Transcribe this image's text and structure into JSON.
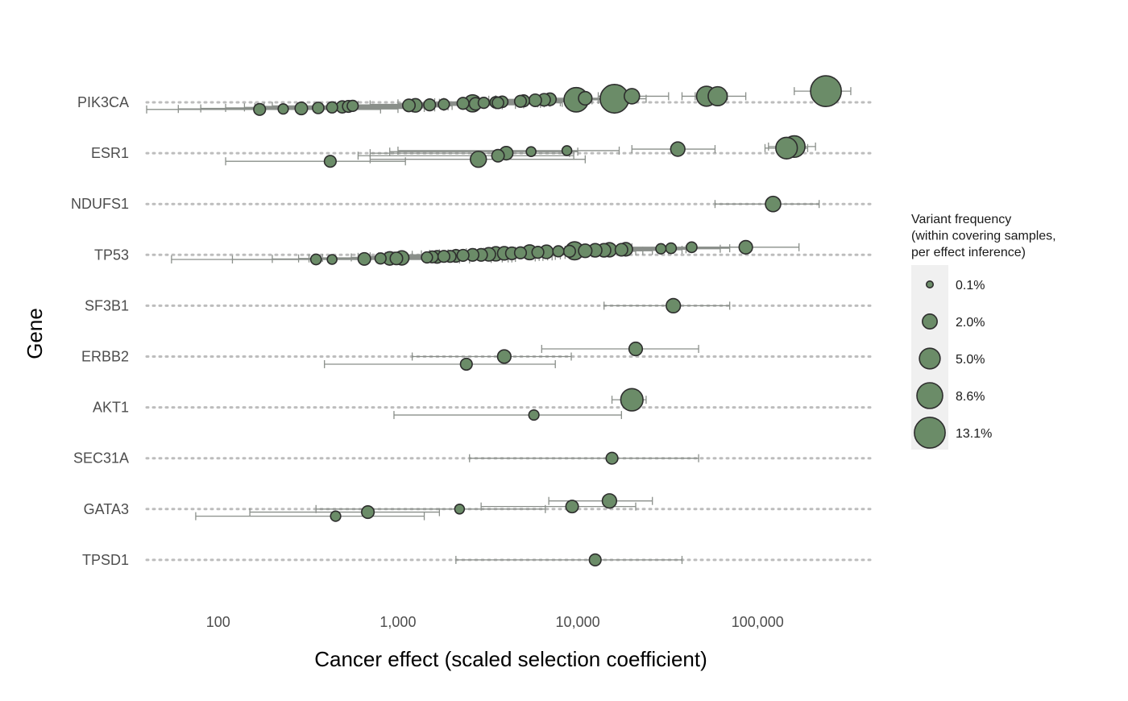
{
  "chart_data": {
    "type": "scatter",
    "subtype": "dot-and-interval by gene",
    "x_scale": "log10",
    "xlim": [
      40,
      450000
    ],
    "x_ticks": [
      100,
      1000,
      10000,
      100000
    ],
    "x_tick_labels": [
      "100",
      "1,000",
      "10,000",
      "100,000"
    ],
    "xlabel": "Cancer effect (scaled selection coefficient)",
    "ylabel": "Gene",
    "grid": "dotted horizontal per gene",
    "genes": [
      "PIK3CA",
      "ESR1",
      "NDUFS1",
      "TP53",
      "SF3B1",
      "ERBB2",
      "AKT1",
      "SEC31A",
      "GATA3",
      "TPSD1"
    ],
    "colors": {
      "point_fill": "#6b8c68",
      "point_stroke": "#2e2e2e",
      "interval": "#8a8f8a",
      "grid": "#bdbdbd",
      "legend_bg": "#f0f0f0"
    },
    "legend": {
      "placement": "right",
      "title": "Variant frequency\n(within covering samples,\nper effect inference)",
      "entries": [
        {
          "label": "0.1%",
          "freq": 0.1
        },
        {
          "label": "2.0%",
          "freq": 2.0
        },
        {
          "label": "5.0%",
          "freq": 5.0
        },
        {
          "label": "8.6%",
          "freq": 8.6
        },
        {
          "label": "13.1%",
          "freq": 13.1
        }
      ]
    },
    "points": [
      {
        "gene": "PIK3CA",
        "effect": 240000,
        "low": 160000,
        "high": 330000,
        "freq": 13.1,
        "offset": 0.22
      },
      {
        "gene": "PIK3CA",
        "effect": 52000,
        "low": 38000,
        "high": 68000,
        "freq": 4.5,
        "offset": 0.12
      },
      {
        "gene": "PIK3CA",
        "effect": 60000,
        "low": 45000,
        "high": 86000,
        "freq": 4.0,
        "offset": 0.12
      },
      {
        "gene": "PIK3CA",
        "effect": 16000,
        "low": 10000,
        "high": 24000,
        "freq": 11.0,
        "offset": 0.07
      },
      {
        "gene": "PIK3CA",
        "effect": 9800,
        "low": 6000,
        "high": 15000,
        "freq": 7.5,
        "offset": 0.05
      },
      {
        "gene": "PIK3CA",
        "effect": 20000,
        "low": 13000,
        "high": 32000,
        "freq": 2.2,
        "offset": 0.12
      },
      {
        "gene": "PIK3CA",
        "effect": 11000,
        "low": 7000,
        "high": 17000,
        "freq": 1.5,
        "offset": 0.08
      },
      {
        "gene": "PIK3CA",
        "effect": 7000,
        "low": 3500,
        "high": 14000,
        "freq": 1.2,
        "offset": 0.06
      },
      {
        "gene": "PIK3CA",
        "effect": 6500,
        "low": 3200,
        "high": 13000,
        "freq": 1.2,
        "offset": 0.05
      },
      {
        "gene": "PIK3CA",
        "effect": 5800,
        "low": 2800,
        "high": 12000,
        "freq": 1.2,
        "offset": 0.04
      },
      {
        "gene": "PIK3CA",
        "effect": 5000,
        "low": 2500,
        "high": 11000,
        "freq": 1.0,
        "offset": 0.03
      },
      {
        "gene": "PIK3CA",
        "effect": 4800,
        "low": 2300,
        "high": 10000,
        "freq": 1.0,
        "offset": 0.02
      },
      {
        "gene": "PIK3CA",
        "effect": 3800,
        "low": 1800,
        "high": 8500,
        "freq": 0.9,
        "offset": 0.01
      },
      {
        "gene": "PIK3CA",
        "effect": 3500,
        "low": 1600,
        "high": 8000,
        "freq": 0.9,
        "offset": 0.0
      },
      {
        "gene": "PIK3CA",
        "effect": 3600,
        "low": 1700,
        "high": 8200,
        "freq": 0.9,
        "offset": -0.01
      },
      {
        "gene": "PIK3CA",
        "effect": 2600,
        "low": 1200,
        "high": 6500,
        "freq": 3.0,
        "offset": -0.02
      },
      {
        "gene": "PIK3CA",
        "effect": 3000,
        "low": 1300,
        "high": 7000,
        "freq": 0.8,
        "offset": -0.01
      },
      {
        "gene": "PIK3CA",
        "effect": 2300,
        "low": 1000,
        "high": 6000,
        "freq": 1.0,
        "offset": -0.02
      },
      {
        "gene": "PIK3CA",
        "effect": 2700,
        "low": 1100,
        "high": 6200,
        "freq": 1.2,
        "offset": -0.03
      },
      {
        "gene": "PIK3CA",
        "effect": 1800,
        "low": 700,
        "high": 5000,
        "freq": 0.8,
        "offset": -0.04
      },
      {
        "gene": "PIK3CA",
        "effect": 1500,
        "low": 600,
        "high": 4500,
        "freq": 1.0,
        "offset": -0.05
      },
      {
        "gene": "PIK3CA",
        "effect": 1250,
        "low": 500,
        "high": 3800,
        "freq": 1.5,
        "offset": -0.06
      },
      {
        "gene": "PIK3CA",
        "effect": 1150,
        "low": 450,
        "high": 3500,
        "freq": 1.2,
        "offset": -0.06
      },
      {
        "gene": "PIK3CA",
        "effect": 560,
        "low": 200,
        "high": 2000,
        "freq": 0.8,
        "offset": -0.07
      },
      {
        "gene": "PIK3CA",
        "effect": 530,
        "low": 180,
        "high": 1900,
        "freq": 1.0,
        "offset": -0.08
      },
      {
        "gene": "PIK3CA",
        "effect": 490,
        "low": 160,
        "high": 1800,
        "freq": 1.1,
        "offset": -0.09
      },
      {
        "gene": "PIK3CA",
        "effect": 430,
        "low": 140,
        "high": 1600,
        "freq": 0.8,
        "offset": -0.1
      },
      {
        "gene": "PIK3CA",
        "effect": 360,
        "low": 110,
        "high": 1400,
        "freq": 0.9,
        "offset": -0.11
      },
      {
        "gene": "PIK3CA",
        "effect": 290,
        "low": 80,
        "high": 1200,
        "freq": 1.2,
        "offset": -0.12
      },
      {
        "gene": "PIK3CA",
        "effect": 230,
        "low": 60,
        "high": 1000,
        "freq": 0.6,
        "offset": -0.13
      },
      {
        "gene": "PIK3CA",
        "effect": 170,
        "low": 40,
        "high": 800,
        "freq": 1.0,
        "offset": -0.14
      },
      {
        "gene": "ESR1",
        "effect": 160000,
        "low": 115000,
        "high": 210000,
        "freq": 5.5,
        "offset": 0.13
      },
      {
        "gene": "ESR1",
        "effect": 145000,
        "low": 110000,
        "high": 190000,
        "freq": 5.5,
        "offset": 0.1
      },
      {
        "gene": "ESR1",
        "effect": 36000,
        "low": 20000,
        "high": 58000,
        "freq": 1.8,
        "offset": 0.08
      },
      {
        "gene": "ESR1",
        "effect": 8700,
        "low": 1000,
        "high": 17000,
        "freq": 0.5,
        "offset": 0.05
      },
      {
        "gene": "ESR1",
        "effect": 5500,
        "low": 900,
        "high": 10000,
        "freq": 0.5,
        "offset": 0.03
      },
      {
        "gene": "ESR1",
        "effect": 4000,
        "low": 700,
        "high": 9000,
        "freq": 1.5,
        "offset": 0.0
      },
      {
        "gene": "ESR1",
        "effect": 3600,
        "low": 600,
        "high": 9500,
        "freq": 1.2,
        "offset": -0.05
      },
      {
        "gene": "ESR1",
        "effect": 2800,
        "low": 700,
        "high": 11000,
        "freq": 2.5,
        "offset": -0.12
      },
      {
        "gene": "ESR1",
        "effect": 420,
        "low": 110,
        "high": 1100,
        "freq": 1.0,
        "offset": -0.16
      },
      {
        "gene": "NDUFS1",
        "effect": 122000,
        "low": 58000,
        "high": 220000,
        "freq": 2.2,
        "offset": 0.0
      },
      {
        "gene": "TP53",
        "effect": 86000,
        "low": 45000,
        "high": 170000,
        "freq": 1.5,
        "offset": 0.15
      },
      {
        "gene": "TP53",
        "effect": 43000,
        "low": 20000,
        "high": 90000,
        "freq": 0.7,
        "offset": 0.15
      },
      {
        "gene": "TP53",
        "effect": 33000,
        "low": 15000,
        "high": 70000,
        "freq": 0.7,
        "offset": 0.13
      },
      {
        "gene": "TP53",
        "effect": 29000,
        "low": 13000,
        "high": 62000,
        "freq": 0.6,
        "offset": 0.12
      },
      {
        "gene": "TP53",
        "effect": 18500,
        "low": 9000,
        "high": 40000,
        "freq": 1.5,
        "offset": 0.11
      },
      {
        "gene": "TP53",
        "effect": 17500,
        "low": 8500,
        "high": 38000,
        "freq": 1.2,
        "offset": 0.1
      },
      {
        "gene": "TP53",
        "effect": 15000,
        "low": 7000,
        "high": 34000,
        "freq": 1.8,
        "offset": 0.1
      },
      {
        "gene": "TP53",
        "effect": 14000,
        "low": 6500,
        "high": 32000,
        "freq": 1.5,
        "offset": 0.09
      },
      {
        "gene": "TP53",
        "effect": 12500,
        "low": 6000,
        "high": 29000,
        "freq": 1.5,
        "offset": 0.09
      },
      {
        "gene": "TP53",
        "effect": 11000,
        "low": 5000,
        "high": 26000,
        "freq": 1.5,
        "offset": 0.08
      },
      {
        "gene": "TP53",
        "effect": 9600,
        "low": 4500,
        "high": 23000,
        "freq": 3.5,
        "offset": 0.08
      },
      {
        "gene": "TP53",
        "effect": 9000,
        "low": 4000,
        "high": 21000,
        "freq": 1.0,
        "offset": 0.07
      },
      {
        "gene": "TP53",
        "effect": 7800,
        "low": 3500,
        "high": 19000,
        "freq": 0.8,
        "offset": 0.07
      },
      {
        "gene": "TP53",
        "effect": 6700,
        "low": 3000,
        "high": 17000,
        "freq": 1.5,
        "offset": 0.06
      },
      {
        "gene": "TP53",
        "effect": 6000,
        "low": 2700,
        "high": 15000,
        "freq": 1.0,
        "offset": 0.05
      },
      {
        "gene": "TP53",
        "effect": 5400,
        "low": 2400,
        "high": 14000,
        "freq": 2.0,
        "offset": 0.05
      },
      {
        "gene": "TP53",
        "effect": 4800,
        "low": 2100,
        "high": 13000,
        "freq": 1.0,
        "offset": 0.04
      },
      {
        "gene": "TP53",
        "effect": 4300,
        "low": 1900,
        "high": 12000,
        "freq": 1.2,
        "offset": 0.03
      },
      {
        "gene": "TP53",
        "effect": 3900,
        "low": 1700,
        "high": 11000,
        "freq": 1.5,
        "offset": 0.03
      },
      {
        "gene": "TP53",
        "effect": 3500,
        "low": 1500,
        "high": 10000,
        "freq": 1.8,
        "offset": 0.02
      },
      {
        "gene": "TP53",
        "effect": 3200,
        "low": 1350,
        "high": 9500,
        "freq": 1.5,
        "offset": 0.01
      },
      {
        "gene": "TP53",
        "effect": 2900,
        "low": 1200,
        "high": 9000,
        "freq": 1.2,
        "offset": 0.0
      },
      {
        "gene": "TP53",
        "effect": 2600,
        "low": 1050,
        "high": 8500,
        "freq": 1.2,
        "offset": 0.0
      },
      {
        "gene": "TP53",
        "effect": 2300,
        "low": 950,
        "high": 8000,
        "freq": 1.0,
        "offset": -0.01
      },
      {
        "gene": "TP53",
        "effect": 2100,
        "low": 850,
        "high": 7500,
        "freq": 1.2,
        "offset": -0.02
      },
      {
        "gene": "TP53",
        "effect": 1950,
        "low": 780,
        "high": 7200,
        "freq": 1.0,
        "offset": -0.03
      },
      {
        "gene": "TP53",
        "effect": 1800,
        "low": 700,
        "high": 6800,
        "freq": 1.0,
        "offset": -0.03
      },
      {
        "gene": "TP53",
        "effect": 1650,
        "low": 640,
        "high": 6400,
        "freq": 1.2,
        "offset": -0.04
      },
      {
        "gene": "TP53",
        "effect": 1550,
        "low": 600,
        "high": 6100,
        "freq": 1.0,
        "offset": -0.04
      },
      {
        "gene": "TP53",
        "effect": 1450,
        "low": 550,
        "high": 5800,
        "freq": 0.8,
        "offset": -0.05
      },
      {
        "gene": "TP53",
        "effect": 1050,
        "low": 380,
        "high": 4500,
        "freq": 1.8,
        "offset": -0.06
      },
      {
        "gene": "TP53",
        "effect": 980,
        "low": 350,
        "high": 4300,
        "freq": 1.2,
        "offset": -0.07
      },
      {
        "gene": "TP53",
        "effect": 900,
        "low": 320,
        "high": 4100,
        "freq": 1.5,
        "offset": -0.07
      },
      {
        "gene": "TP53",
        "effect": 800,
        "low": 280,
        "high": 3800,
        "freq": 0.8,
        "offset": -0.07
      },
      {
        "gene": "TP53",
        "effect": 650,
        "low": 200,
        "high": 3300,
        "freq": 1.2,
        "offset": -0.08
      },
      {
        "gene": "TP53",
        "effect": 430,
        "low": 120,
        "high": 2500,
        "freq": 0.5,
        "offset": -0.09
      },
      {
        "gene": "TP53",
        "effect": 350,
        "low": 55,
        "high": 2200,
        "freq": 0.7,
        "offset": -0.09
      },
      {
        "gene": "SF3B1",
        "effect": 34000,
        "low": 14000,
        "high": 70000,
        "freq": 1.8,
        "offset": 0.0
      },
      {
        "gene": "ERBB2",
        "effect": 21000,
        "low": 6300,
        "high": 47000,
        "freq": 1.5,
        "offset": 0.15
      },
      {
        "gene": "ERBB2",
        "effect": 3900,
        "low": 1200,
        "high": 9200,
        "freq": 1.5,
        "offset": 0.0
      },
      {
        "gene": "ERBB2",
        "effect": 2400,
        "low": 390,
        "high": 7500,
        "freq": 1.0,
        "offset": -0.15
      },
      {
        "gene": "AKT1",
        "effect": 20000,
        "low": 15500,
        "high": 24000,
        "freq": 6.0,
        "offset": 0.15
      },
      {
        "gene": "AKT1",
        "effect": 5700,
        "low": 950,
        "high": 17500,
        "freq": 0.6,
        "offset": -0.15
      },
      {
        "gene": "SEC31A",
        "effect": 15500,
        "low": 2500,
        "high": 47000,
        "freq": 1.0,
        "offset": 0.0
      },
      {
        "gene": "GATA3",
        "effect": 15000,
        "low": 6900,
        "high": 26000,
        "freq": 1.8,
        "offset": 0.16
      },
      {
        "gene": "GATA3",
        "effect": 9300,
        "low": 2900,
        "high": 21000,
        "freq": 1.2,
        "offset": 0.05
      },
      {
        "gene": "GATA3",
        "effect": 2200,
        "low": 350,
        "high": 6600,
        "freq": 0.5,
        "offset": 0.0
      },
      {
        "gene": "GATA3",
        "effect": 680,
        "low": 150,
        "high": 1700,
        "freq": 1.2,
        "offset": -0.06
      },
      {
        "gene": "GATA3",
        "effect": 450,
        "low": 75,
        "high": 1400,
        "freq": 0.6,
        "offset": -0.14
      },
      {
        "gene": "TPSD1",
        "effect": 12500,
        "low": 2100,
        "high": 38000,
        "freq": 1.0,
        "offset": 0.0
      }
    ]
  }
}
